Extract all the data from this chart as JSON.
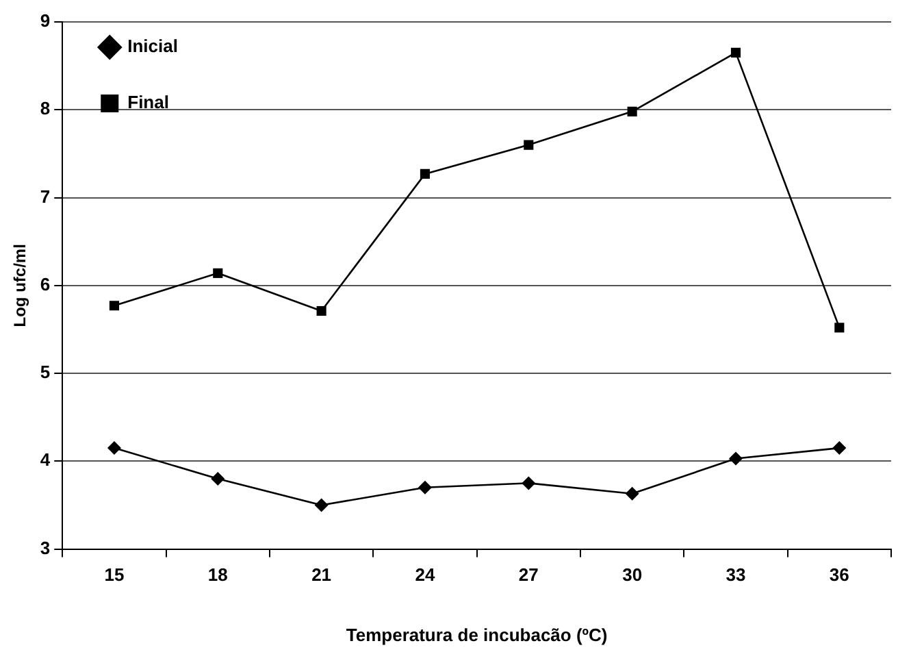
{
  "chart_data": {
    "type": "line",
    "xlabel": "Temperatura de incubacão (ºC)",
    "ylabel": "Log ufc/ml",
    "categories": [
      "15",
      "18",
      "21",
      "24",
      "27",
      "30",
      "33",
      "36"
    ],
    "series": [
      {
        "name": "Inicial",
        "color": "#000000",
        "marker": "diamond",
        "values": [
          4.15,
          3.8,
          3.5,
          3.7,
          3.75,
          3.63,
          4.03,
          4.15
        ]
      },
      {
        "name": "Final",
        "color": "#000000",
        "marker": "square",
        "values": [
          5.77,
          6.14,
          5.71,
          7.27,
          7.6,
          7.98,
          8.65,
          5.52
        ]
      }
    ],
    "ylim": [
      3,
      9
    ],
    "yticks": [
      3,
      4,
      5,
      6,
      7,
      8,
      9
    ],
    "grid": "y",
    "legend": "top left",
    "line_style": "solid"
  }
}
